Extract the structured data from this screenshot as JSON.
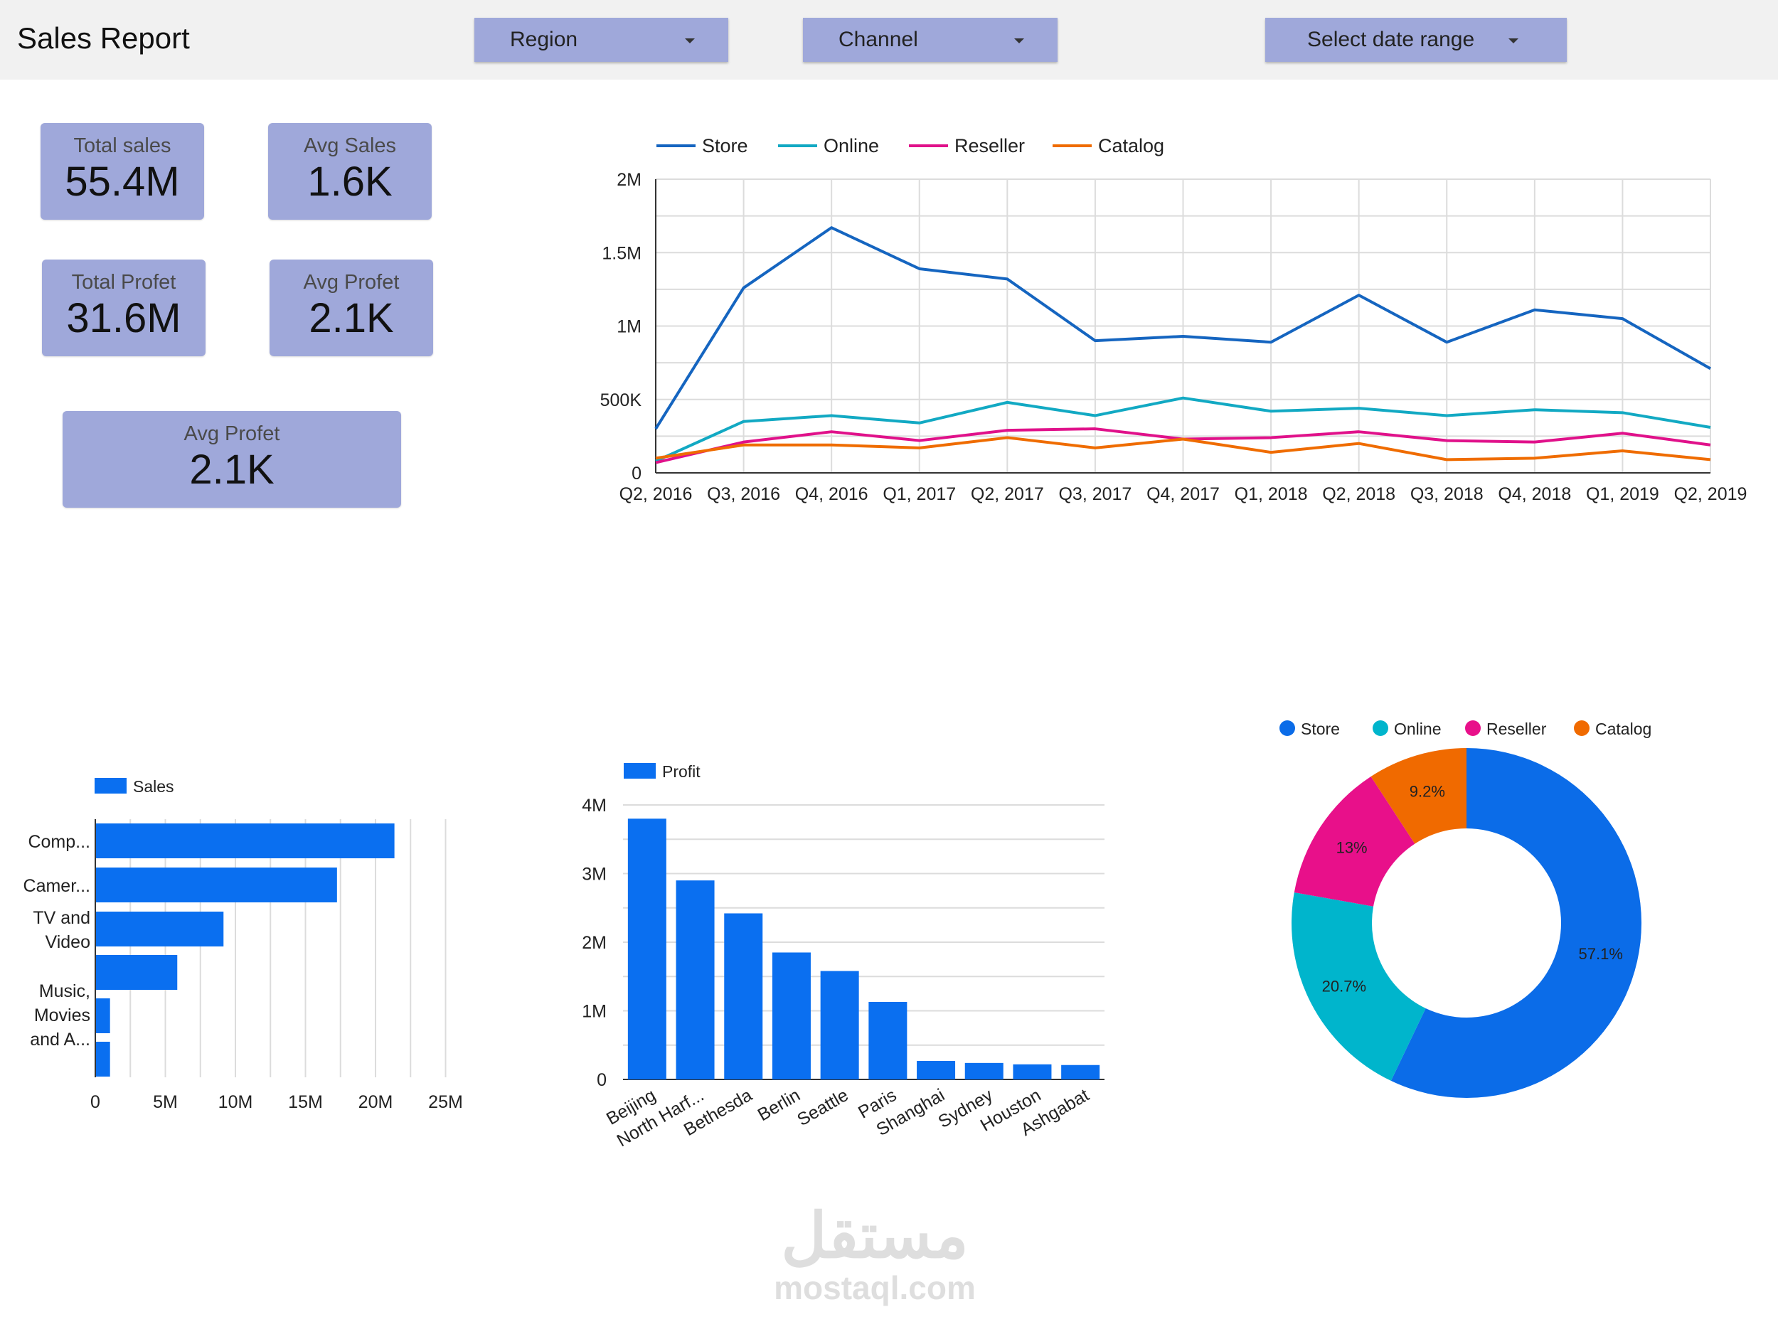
{
  "header": {
    "title": "Sales Report",
    "filters": {
      "region": "Region",
      "channel": "Channel",
      "date_range": "Select date range"
    }
  },
  "kpis": {
    "total_sales": {
      "label": "Total sales",
      "value": "55.4M"
    },
    "avg_sales": {
      "label": "Avg Sales",
      "value": "1.6K"
    },
    "total_profit": {
      "label": "Total Profet",
      "value": "31.6M"
    },
    "avg_profit": {
      "label": "Avg Profet",
      "value": "2.1K"
    },
    "avg_profit_2": {
      "label": "Avg Profet",
      "value": "2.1K"
    }
  },
  "watermark": {
    "arabic": "مستقل",
    "latin": "mostaql.com"
  },
  "colors": {
    "store": "#1565c0",
    "online": "#12a9c3",
    "reseller": "#e0118a",
    "catalog": "#ef6c00",
    "bar": "#0a6ff0",
    "kpi": "#9fa8da",
    "pie_store": "#0b6ce8",
    "pie_online": "#00b5cc",
    "pie_reseller": "#e8108a",
    "pie_catalog": "#f06a00"
  },
  "chart_data": [
    {
      "type": "line",
      "x": [
        "Q2, 2016",
        "Q3, 2016",
        "Q4, 2016",
        "Q1, 2017",
        "Q2, 2017",
        "Q3, 2017",
        "Q4, 2017",
        "Q1, 2018",
        "Q2, 2018",
        "Q3, 2018",
        "Q4, 2018",
        "Q1, 2019",
        "Q2, 2019"
      ],
      "ylim": [
        0,
        2000000
      ],
      "yticks": [
        "0",
        "500K",
        "1M",
        "1.5M",
        "2M"
      ],
      "grid": true,
      "legend": "top-left",
      "series": [
        {
          "name": "Store",
          "values": [
            300000,
            1260000,
            1670000,
            1390000,
            1320000,
            900000,
            930000,
            890000,
            1210000,
            890000,
            1110000,
            1050000,
            710000
          ]
        },
        {
          "name": "Online",
          "values": [
            80000,
            350000,
            390000,
            340000,
            480000,
            390000,
            510000,
            420000,
            440000,
            390000,
            430000,
            410000,
            310000
          ]
        },
        {
          "name": "Reseller",
          "values": [
            70000,
            210000,
            280000,
            220000,
            290000,
            300000,
            230000,
            240000,
            280000,
            220000,
            210000,
            270000,
            190000
          ]
        },
        {
          "name": "Catalog",
          "values": [
            100000,
            190000,
            190000,
            170000,
            240000,
            170000,
            230000,
            140000,
            200000,
            90000,
            100000,
            150000,
            90000
          ]
        }
      ]
    },
    {
      "type": "bar",
      "orientation": "horizontal",
      "legend": "top-left",
      "series": [
        {
          "name": "Sales",
          "values": [
            21300000,
            17200000,
            9100000,
            5800000,
            1000000,
            1000000
          ]
        }
      ],
      "categories": [
        "Comp...",
        "Camer...",
        "TV and\nVideo",
        "",
        "Music,\nMovies\nand A...",
        ""
      ],
      "xlim": [
        0,
        25000000
      ],
      "xticks": [
        "0",
        "5M",
        "10M",
        "15M",
        "20M",
        "25M"
      ]
    },
    {
      "type": "bar",
      "legend": "top-left",
      "series": [
        {
          "name": "Profit",
          "values": [
            3800000,
            2900000,
            2420000,
            1850000,
            1580000,
            1130000,
            270000,
            240000,
            220000,
            210000
          ]
        }
      ],
      "categories": [
        "Beijing",
        "North Harf...",
        "Bethesda",
        "Berlin",
        "Seattle",
        "Paris",
        "Shanghai",
        "Sydney",
        "Houston",
        "Ashgabat"
      ],
      "ylim": [
        0,
        4000000
      ],
      "yticks": [
        "0",
        "1M",
        "2M",
        "3M",
        "4M"
      ]
    },
    {
      "type": "pie",
      "donut": true,
      "legend": "top",
      "slices": [
        {
          "name": "Store",
          "value": 57.1,
          "label": "57.1%"
        },
        {
          "name": "Online",
          "value": 20.7,
          "label": "20.7%"
        },
        {
          "name": "Reseller",
          "value": 13.0,
          "label": "13%"
        },
        {
          "name": "Catalog",
          "value": 9.2,
          "label": "9.2%"
        }
      ]
    }
  ]
}
